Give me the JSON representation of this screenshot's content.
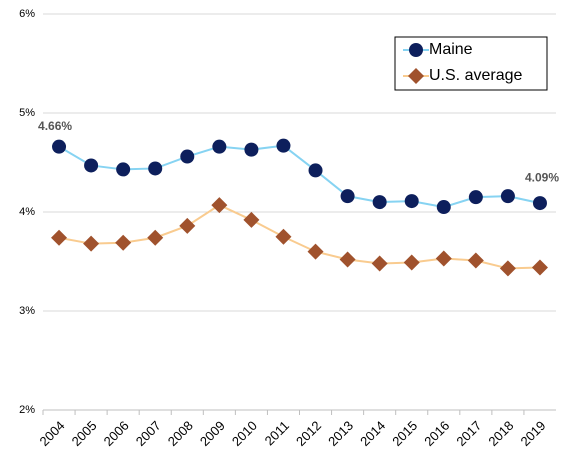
{
  "chart_data": {
    "type": "line",
    "categories": [
      "2004",
      "2005",
      "2006",
      "2007",
      "2008",
      "2009",
      "2010",
      "2011",
      "2012",
      "2013",
      "2014",
      "2015",
      "2016",
      "2017",
      "2018",
      "2019"
    ],
    "series": [
      {
        "name": "Maine",
        "color": "#0d1f5c",
        "line_color": "#86d3f2",
        "marker": "circle",
        "values": [
          4.66,
          4.47,
          4.43,
          4.44,
          4.56,
          4.66,
          4.63,
          4.67,
          4.42,
          4.16,
          4.1,
          4.11,
          4.05,
          4.15,
          4.16,
          4.09
        ],
        "value_labels": [
          "4.66%",
          null,
          null,
          null,
          null,
          null,
          null,
          null,
          null,
          null,
          null,
          null,
          null,
          null,
          null,
          "4.09%"
        ]
      },
      {
        "name": "U.S. average",
        "color": "#a0522d",
        "line_color": "#f9cb8f",
        "marker": "diamond",
        "values": [
          3.74,
          3.68,
          3.69,
          3.74,
          3.86,
          4.07,
          3.92,
          3.75,
          3.6,
          3.52,
          3.48,
          3.49,
          3.53,
          3.51,
          3.43,
          3.44
        ]
      }
    ],
    "ylim": [
      2,
      6
    ],
    "yticks": [
      {
        "value": 2,
        "label": "2%"
      },
      {
        "value": 3,
        "label": "3%"
      },
      {
        "value": 4,
        "label": "4%"
      },
      {
        "value": 5,
        "label": "5%"
      },
      {
        "value": 6,
        "label": "6%"
      }
    ],
    "grid": true,
    "legend": "upper right"
  }
}
